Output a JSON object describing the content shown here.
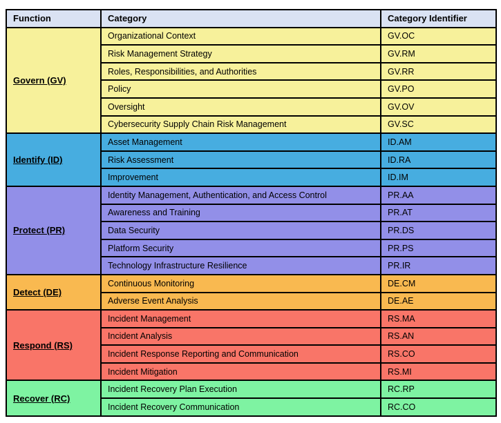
{
  "colors": {
    "page_bg": "#FFFFFF",
    "header_bg": "#DAE2F3",
    "border": "#000000",
    "text": "#000000"
  },
  "table": {
    "headers": [
      "Function",
      "Category",
      "Category Identifier"
    ],
    "groups": [
      {
        "function": "Govern (GV)",
        "color": "#F7F19B",
        "rows": [
          {
            "category": "Organizational Context",
            "id": "GV.OC"
          },
          {
            "category": "Risk Management Strategy",
            "id": "GV.RM"
          },
          {
            "category": "Roles, Responsibilities, and Authorities",
            "id": "GV.RR"
          },
          {
            "category": "Policy",
            "id": "GV.PO"
          },
          {
            "category": "Oversight",
            "id": "GV.OV"
          },
          {
            "category": "Cybersecurity Supply Chain Risk Management",
            "id": "GV.SC"
          }
        ]
      },
      {
        "function": "Identify (ID)",
        "color": "#47ADE0",
        "rows": [
          {
            "category": "Asset Management",
            "id": "ID.AM"
          },
          {
            "category": "Risk Assessment",
            "id": "ID.RA"
          },
          {
            "category": "Improvement",
            "id": "ID.IM"
          }
        ]
      },
      {
        "function": "Protect (PR)",
        "color": "#928FE8",
        "rows": [
          {
            "category": "Identity Management, Authentication, and Access Control",
            "id": "PR.AA"
          },
          {
            "category": "Awareness and Training",
            "id": "PR.AT"
          },
          {
            "category": "Data Security",
            "id": "PR.DS"
          },
          {
            "category": "Platform Security",
            "id": "PR.PS"
          },
          {
            "category": "Technology Infrastructure Resilience",
            "id": "PR.IR"
          }
        ]
      },
      {
        "function": "Detect (DE)",
        "color": "#F9B950",
        "rows": [
          {
            "category": "Continuous Monitoring",
            "id": "DE.CM"
          },
          {
            "category": "Adverse Event Analysis",
            "id": "DE.AE"
          }
        ]
      },
      {
        "function": "Respond (RS)",
        "color": "#F97568",
        "rows": [
          {
            "category": "Incident Management",
            "id": "RS.MA"
          },
          {
            "category": "Incident Analysis",
            "id": "RS.AN"
          },
          {
            "category": "Incident Response Reporting and Communication",
            "id": "RS.CO"
          },
          {
            "category": "Incident Mitigation",
            "id": "RS.MI"
          }
        ]
      },
      {
        "function": "Recover (RC)",
        "color": "#7EF3A2",
        "rows": [
          {
            "category": "Incident Recovery Plan Execution",
            "id": "RC.RP"
          },
          {
            "category": "Incident Recovery Communication",
            "id": "RC.CO"
          }
        ]
      }
    ]
  }
}
